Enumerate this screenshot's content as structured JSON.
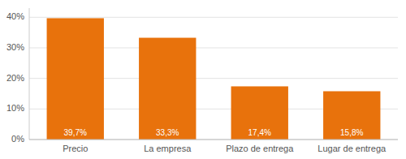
{
  "chart_data": {
    "type": "bar",
    "categories": [
      "Precio",
      "La empresa",
      "Plazo de entrega",
      "Lugar de entrega"
    ],
    "values": [
      39.7,
      33.3,
      17.4,
      15.8
    ],
    "value_labels": [
      "39,7%",
      "33,3%",
      "17,4%",
      "15,8%"
    ],
    "color": "#E8720C",
    "ylim": [
      0,
      43
    ],
    "yticks": [
      {
        "value": 0,
        "label": "0%"
      },
      {
        "value": 10,
        "label": "10%"
      },
      {
        "value": 20,
        "label": "20%"
      },
      {
        "value": 30,
        "label": "30%"
      },
      {
        "value": 40,
        "label": "40%"
      }
    ],
    "grid": true,
    "data_labels": true
  }
}
